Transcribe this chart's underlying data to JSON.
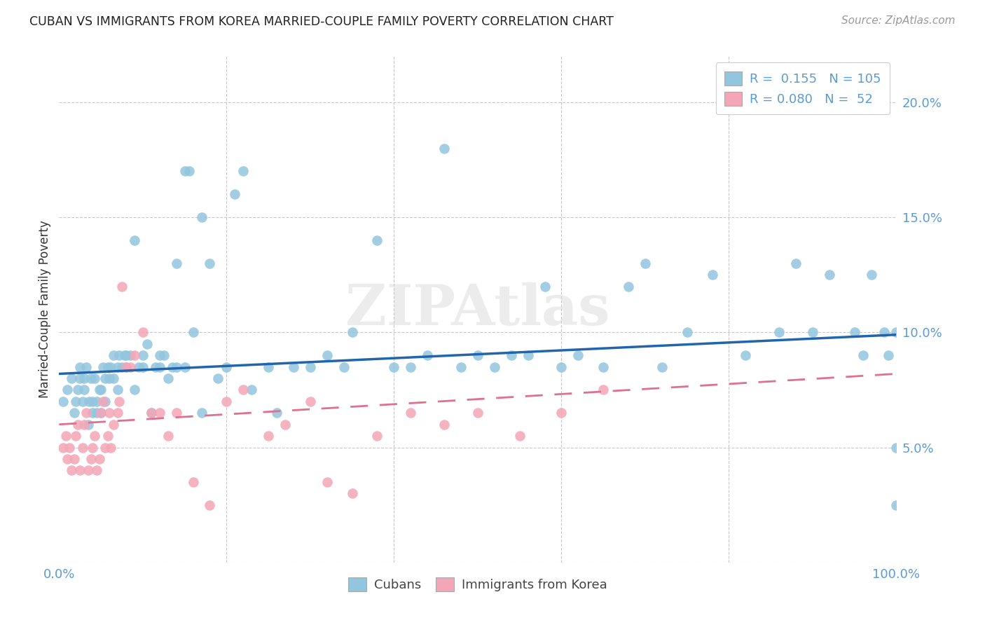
{
  "title": "CUBAN VS IMMIGRANTS FROM KOREA MARRIED-COUPLE FAMILY POVERTY CORRELATION CHART",
  "source": "Source: ZipAtlas.com",
  "ylabel": "Married-Couple Family Poverty",
  "xlim": [
    0.0,
    1.0
  ],
  "ylim": [
    0.0,
    0.22
  ],
  "legend_cubans_R": "0.155",
  "legend_cubans_N": "105",
  "legend_korea_R": "0.080",
  "legend_korea_N": "52",
  "cubans_color": "#92c5de",
  "korea_color": "#f4a6b8",
  "trendline_cubans_color": "#2166ac",
  "trendline_korea_color": "#e07090",
  "background_color": "#ffffff",
  "watermark": "ZIPAtlas",
  "grid_color": "#c8c8c8",
  "yticks": [
    0.0,
    0.05,
    0.1,
    0.15,
    0.2
  ],
  "ytick_labels": [
    "",
    "5.0%",
    "10.0%",
    "15.0%",
    "20.0%"
  ],
  "cubans_x": [
    0.005,
    0.01,
    0.015,
    0.018,
    0.02,
    0.022,
    0.025,
    0.025,
    0.028,
    0.03,
    0.03,
    0.032,
    0.035,
    0.036,
    0.038,
    0.04,
    0.04,
    0.042,
    0.045,
    0.045,
    0.048,
    0.05,
    0.05,
    0.052,
    0.055,
    0.055,
    0.058,
    0.06,
    0.062,
    0.065,
    0.065,
    0.07,
    0.07,
    0.072,
    0.075,
    0.078,
    0.08,
    0.08,
    0.085,
    0.09,
    0.09,
    0.095,
    0.1,
    0.1,
    0.105,
    0.11,
    0.115,
    0.12,
    0.12,
    0.125,
    0.13,
    0.135,
    0.14,
    0.14,
    0.15,
    0.15,
    0.155,
    0.16,
    0.17,
    0.17,
    0.18,
    0.19,
    0.2,
    0.21,
    0.22,
    0.23,
    0.25,
    0.26,
    0.28,
    0.3,
    0.32,
    0.34,
    0.35,
    0.38,
    0.4,
    0.42,
    0.44,
    0.46,
    0.48,
    0.5,
    0.52,
    0.54,
    0.56,
    0.58,
    0.6,
    0.62,
    0.65,
    0.68,
    0.7,
    0.72,
    0.75,
    0.78,
    0.82,
    0.86,
    0.88,
    0.9,
    0.92,
    0.95,
    0.96,
    0.97,
    0.985,
    0.99,
    1.0,
    1.0,
    1.0
  ],
  "cubans_y": [
    0.07,
    0.075,
    0.08,
    0.065,
    0.07,
    0.075,
    0.08,
    0.085,
    0.07,
    0.075,
    0.08,
    0.085,
    0.06,
    0.07,
    0.08,
    0.065,
    0.07,
    0.08,
    0.065,
    0.07,
    0.075,
    0.065,
    0.075,
    0.085,
    0.07,
    0.08,
    0.085,
    0.08,
    0.085,
    0.09,
    0.08,
    0.075,
    0.085,
    0.09,
    0.085,
    0.09,
    0.085,
    0.09,
    0.09,
    0.14,
    0.075,
    0.085,
    0.085,
    0.09,
    0.095,
    0.065,
    0.085,
    0.09,
    0.085,
    0.09,
    0.08,
    0.085,
    0.085,
    0.13,
    0.085,
    0.17,
    0.17,
    0.1,
    0.15,
    0.065,
    0.13,
    0.08,
    0.085,
    0.16,
    0.17,
    0.075,
    0.085,
    0.065,
    0.085,
    0.085,
    0.09,
    0.085,
    0.1,
    0.14,
    0.085,
    0.085,
    0.09,
    0.18,
    0.085,
    0.09,
    0.085,
    0.09,
    0.09,
    0.12,
    0.085,
    0.09,
    0.085,
    0.12,
    0.13,
    0.085,
    0.1,
    0.125,
    0.09,
    0.1,
    0.13,
    0.1,
    0.125,
    0.1,
    0.09,
    0.125,
    0.1,
    0.09,
    0.025,
    0.05,
    0.1
  ],
  "korea_x": [
    0.005,
    0.008,
    0.01,
    0.012,
    0.015,
    0.018,
    0.02,
    0.022,
    0.025,
    0.028,
    0.03,
    0.032,
    0.035,
    0.038,
    0.04,
    0.042,
    0.045,
    0.048,
    0.05,
    0.052,
    0.055,
    0.058,
    0.06,
    0.062,
    0.065,
    0.07,
    0.072,
    0.075,
    0.08,
    0.085,
    0.09,
    0.1,
    0.11,
    0.12,
    0.13,
    0.14,
    0.16,
    0.18,
    0.2,
    0.22,
    0.25,
    0.27,
    0.3,
    0.32,
    0.35,
    0.38,
    0.42,
    0.46,
    0.5,
    0.55,
    0.6,
    0.65
  ],
  "korea_y": [
    0.05,
    0.055,
    0.045,
    0.05,
    0.04,
    0.045,
    0.055,
    0.06,
    0.04,
    0.05,
    0.06,
    0.065,
    0.04,
    0.045,
    0.05,
    0.055,
    0.04,
    0.045,
    0.065,
    0.07,
    0.05,
    0.055,
    0.065,
    0.05,
    0.06,
    0.065,
    0.07,
    0.12,
    0.085,
    0.085,
    0.09,
    0.1,
    0.065,
    0.065,
    0.055,
    0.065,
    0.035,
    0.025,
    0.07,
    0.075,
    0.055,
    0.06,
    0.07,
    0.035,
    0.03,
    0.055,
    0.065,
    0.06,
    0.065,
    0.055,
    0.065,
    0.075
  ],
  "trendline_cubans_x0": 0.0,
  "trendline_cubans_y0": 0.082,
  "trendline_cubans_x1": 1.0,
  "trendline_cubans_y1": 0.099,
  "trendline_korea_x0": 0.0,
  "trendline_korea_y0": 0.06,
  "trendline_korea_x1": 1.0,
  "trendline_korea_y1": 0.082
}
